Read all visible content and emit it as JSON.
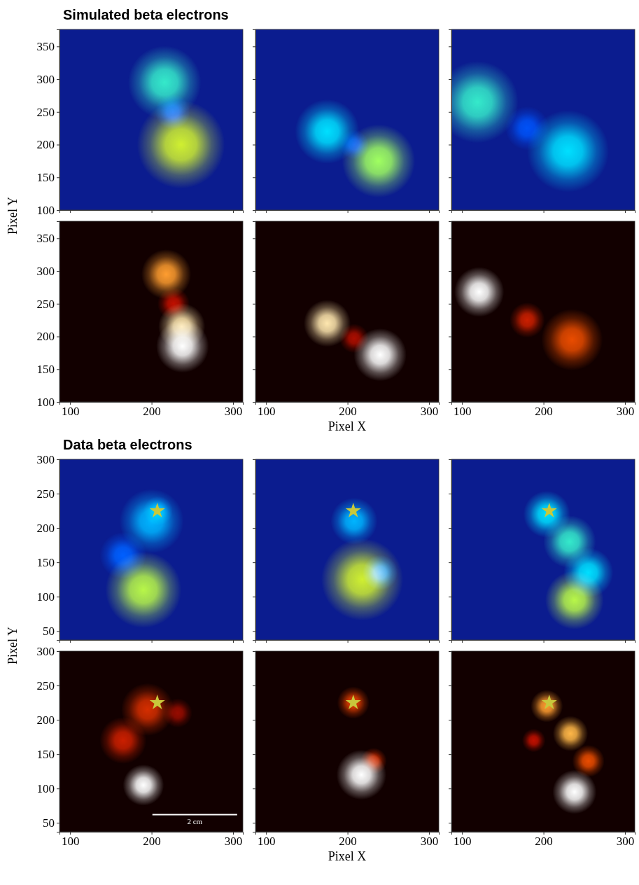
{
  "chart_data": [
    {
      "type": "heatmap",
      "title": "Simulated beta electrons",
      "x_label": "Pixel X",
      "y_label": "Pixel Y",
      "xlim": [
        87,
        312
      ],
      "ylim": [
        100,
        376
      ],
      "xticks": [
        100,
        200,
        300
      ],
      "yticks": [
        100,
        150,
        200,
        250,
        300,
        350
      ],
      "rows": [
        {
          "color": "jet",
          "panels": [
            {
              "blobs": {
                "x": [
                  216,
                  236,
                  226
                ],
                "y": [
                  295,
                  200,
                  250
                ],
                "size": [
                  25,
                  30,
                  12
                ],
                "values": [
                  0.55,
                  0.75,
                  0.3
                ]
              }
            },
            {
              "blobs": {
                "x": [
                  175,
                  238,
                  208
                ],
                "y": [
                  220,
                  175,
                  200
                ],
                "size": [
                  22,
                  25,
                  10
                ],
                "values": [
                  0.5,
                  0.65,
                  0.25
                ]
              }
            },
            {
              "blobs": {
                "x": [
                  119,
                  230,
                  180
                ],
                "y": [
                  265,
                  190,
                  225
                ],
                "size": [
                  28,
                  28,
                  15
                ],
                "values": [
                  0.55,
                  0.5,
                  0.3
                ]
              }
            }
          ]
        },
        {
          "color": "hot",
          "panels": [
            {
              "blobs": {
                "x": [
                  218,
                  237,
                  238,
                  227
                ],
                "y": [
                  295,
                  215,
                  185,
                  250
                ],
                "size": [
                  17,
                  16,
                  18,
                  11
                ],
                "values": [
                  0.8,
                  0.95,
                  1.0,
                  0.4
                ]
              }
            },
            {
              "blobs": {
                "x": [
                  175,
                  240,
                  208
                ],
                "y": [
                  220,
                  172,
                  197
                ],
                "size": [
                  16,
                  18,
                  10
                ],
                "values": [
                  0.95,
                  1.0,
                  0.35
                ]
              }
            },
            {
              "blobs": {
                "x": [
                  121,
                  180,
                  235
                ],
                "y": [
                  268,
                  225,
                  195
                ],
                "size": [
                  17,
                  12,
                  21
                ],
                "values": [
                  1.0,
                  0.45,
                  0.6
                ]
              }
            }
          ]
        }
      ]
    },
    {
      "type": "heatmap",
      "title": "Data beta electrons",
      "x_label": "Pixel X",
      "y_label": "Pixel Y",
      "xlim": [
        87,
        312
      ],
      "ylim": [
        37,
        300
      ],
      "xticks": [
        100,
        200,
        300
      ],
      "yticks": [
        50,
        100,
        150,
        200,
        250,
        300
      ],
      "star": {
        "x": 207,
        "y": 225,
        "color": "#c8c83c",
        "marker": "star"
      },
      "rows": [
        {
          "color": "jet",
          "panels": [
            {
              "blobs": {
                "x": [
                  200,
                  190,
                  165,
                  208
                ],
                "y": [
                  210,
                  110,
                  160,
                  225
                ],
                "size": [
                  22,
                  26,
                  16,
                  10
                ],
                "values": [
                  0.45,
                  0.7,
                  0.35,
                  0.4
                ]
              }
            },
            {
              "blobs": {
                "x": [
                  208,
                  218,
                  240
                ],
                "y": [
                  210,
                  125,
                  135
                ],
                "size": [
                  16,
                  28,
                  12
                ],
                "values": [
                  0.45,
                  0.75,
                  0.4
                ]
              }
            },
            {
              "blobs": {
                "x": [
                  204,
                  232,
                  255,
                  238
                ],
                "y": [
                  220,
                  180,
                  135,
                  95
                ],
                "size": [
                  16,
                  18,
                  17,
                  20
                ],
                "values": [
                  0.5,
                  0.55,
                  0.5,
                  0.7
                ]
              }
            }
          ]
        },
        {
          "color": "hot",
          "panels": [
            {
              "blobs": {
                "x": [
                  190,
                  165,
                  195,
                  232
                ],
                "y": [
                  105,
                  170,
                  215,
                  210
                ],
                "size": [
                  14,
                  16,
                  18,
                  10
                ],
                "values": [
                  1.0,
                  0.45,
                  0.5,
                  0.3
                ]
              },
              "scale_bar": {
                "label": "2 cm",
                "x": [
                  201,
                  305
                ],
                "y": 62
              }
            },
            {
              "blobs": {
                "x": [
                  207,
                  217,
                  232
                ],
                "y": [
                  225,
                  120,
                  140
                ],
                "size": [
                  11,
                  17,
                  9
                ],
                "values": [
                  0.55,
                  1.0,
                  0.5
                ]
              }
            },
            {
              "blobs": {
                "x": [
                  204,
                  233,
                  255,
                  238,
                  188
                ],
                "y": [
                  220,
                  180,
                  140,
                  95,
                  170
                ],
                "size": [
                  11,
                  12,
                  11,
                  15,
                  8
                ],
                "values": [
                  0.8,
                  0.85,
                  0.6,
                  1.0,
                  0.4
                ]
              }
            }
          ]
        }
      ]
    }
  ]
}
